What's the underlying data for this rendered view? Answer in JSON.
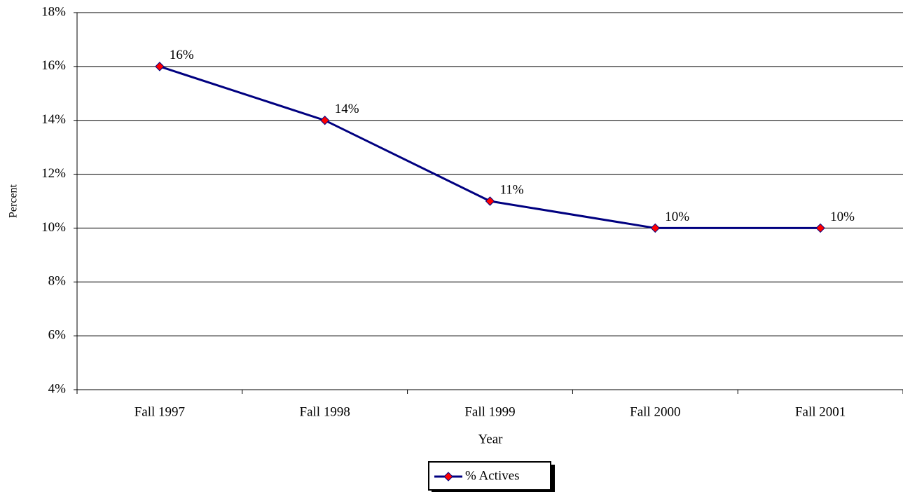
{
  "chart_data": {
    "type": "line",
    "x_label": "Year",
    "y_label": "Percent",
    "categories": [
      "Fall 1997",
      "Fall 1998",
      "Fall 1999",
      "Fall 2000",
      "Fall 2001"
    ],
    "series": [
      {
        "name": "% Actives",
        "color": "#000080",
        "marker_color": "#ff0000",
        "values": [
          16,
          14,
          11,
          10,
          10
        ],
        "value_labels": [
          "16%",
          "14%",
          "11%",
          "10%",
          "10%"
        ]
      }
    ],
    "ylim": [
      4,
      18
    ],
    "yticks": [
      {
        "value": 4,
        "label": "4%"
      },
      {
        "value": 6,
        "label": "6%"
      },
      {
        "value": 8,
        "label": "8%"
      },
      {
        "value": 10,
        "label": "10%"
      },
      {
        "value": 12,
        "label": "12%"
      },
      {
        "value": 14,
        "label": "14%"
      },
      {
        "value": 16,
        "label": "16%"
      },
      {
        "value": 18,
        "label": "18%"
      }
    ],
    "grid": true,
    "legend": "bottom"
  }
}
